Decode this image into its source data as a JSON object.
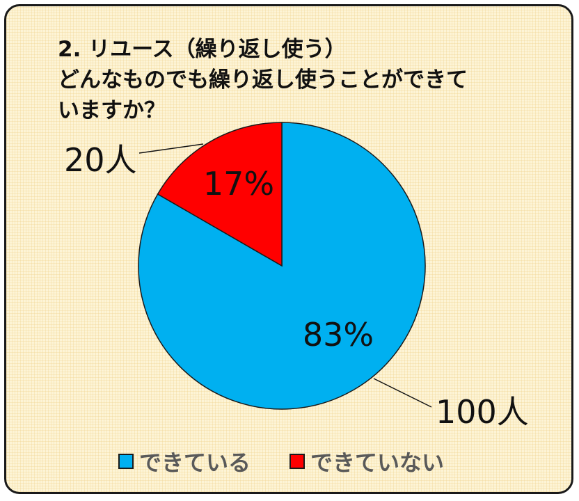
{
  "title": {
    "line1": "2.  リユース（繰り返し使う）",
    "line2": "どんなものでも繰り返し使うことができて",
    "line3": "いますか？"
  },
  "chart_data": {
    "type": "pie",
    "categories": [
      "できている",
      "できていない"
    ],
    "values": [
      100,
      20
    ],
    "percent_labels": [
      "83%",
      "17%"
    ],
    "count_labels": [
      "100人",
      "20人"
    ],
    "colors": [
      "#00b0f0",
      "#ff0000"
    ],
    "legend_position": "bottom"
  }
}
